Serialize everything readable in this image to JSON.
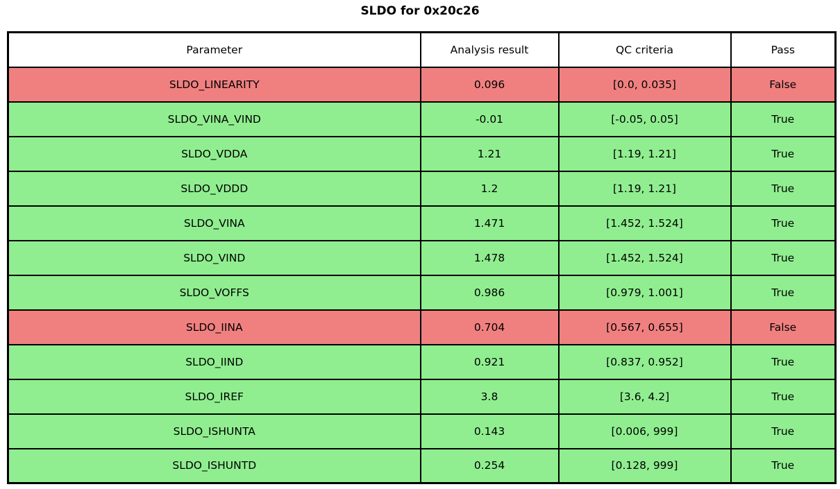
{
  "title": "SLDO for 0x20c26",
  "colors": {
    "pass_green": "#90ee90",
    "fail_red": "#f08080",
    "header_bg": "#ffffff",
    "border": "#000000",
    "text": "#000000"
  },
  "chart_data": {
    "type": "table",
    "title": "SLDO for 0x20c26",
    "columns": [
      "Parameter",
      "Analysis result",
      "QC criteria",
      "Pass"
    ],
    "rows": [
      {
        "parameter": "SLDO_LINEARITY",
        "analysis_result": "0.096",
        "qc_criteria": "[0.0, 0.035]",
        "pass": "False"
      },
      {
        "parameter": "SLDO_VINA_VIND",
        "analysis_result": "-0.01",
        "qc_criteria": "[-0.05, 0.05]",
        "pass": "True"
      },
      {
        "parameter": "SLDO_VDDA",
        "analysis_result": "1.21",
        "qc_criteria": "[1.19, 1.21]",
        "pass": "True"
      },
      {
        "parameter": "SLDO_VDDD",
        "analysis_result": "1.2",
        "qc_criteria": "[1.19, 1.21]",
        "pass": "True"
      },
      {
        "parameter": "SLDO_VINA",
        "analysis_result": "1.471",
        "qc_criteria": "[1.452, 1.524]",
        "pass": "True"
      },
      {
        "parameter": "SLDO_VIND",
        "analysis_result": "1.478",
        "qc_criteria": "[1.452, 1.524]",
        "pass": "True"
      },
      {
        "parameter": "SLDO_VOFFS",
        "analysis_result": "0.986",
        "qc_criteria": "[0.979, 1.001]",
        "pass": "True"
      },
      {
        "parameter": "SLDO_IINA",
        "analysis_result": "0.704",
        "qc_criteria": "[0.567, 0.655]",
        "pass": "False"
      },
      {
        "parameter": "SLDO_IIND",
        "analysis_result": "0.921",
        "qc_criteria": "[0.837, 0.952]",
        "pass": "True"
      },
      {
        "parameter": "SLDO_IREF",
        "analysis_result": "3.8",
        "qc_criteria": "[3.6, 4.2]",
        "pass": "True"
      },
      {
        "parameter": "SLDO_ISHUNTA",
        "analysis_result": "0.143",
        "qc_criteria": "[0.006, 999]",
        "pass": "True"
      },
      {
        "parameter": "SLDO_ISHUNTD",
        "analysis_result": "0.254",
        "qc_criteria": "[0.128, 999]",
        "pass": "True"
      }
    ]
  }
}
